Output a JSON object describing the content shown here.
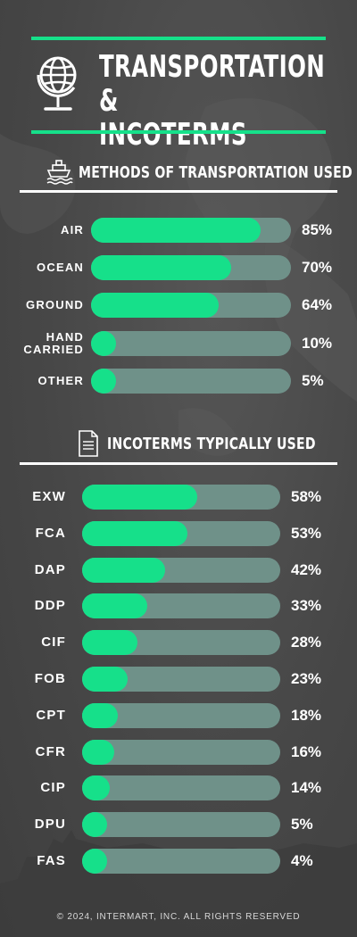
{
  "title": "TRANSPORTATION &\nINCOTERMS",
  "icons": {
    "header": "globe-icon",
    "section1": "ship-icon",
    "section2": "document-icon"
  },
  "colors": {
    "accent": "#16e08a",
    "track": "#6f9189",
    "background": "#4a4a4a"
  },
  "footer": "© 2024, INTERMART, INC. ALL RIGHTS RESERVED",
  "chart_data": [
    {
      "type": "bar",
      "orientation": "horizontal",
      "title": "METHODS OF TRANSPORTATION USED",
      "categories": [
        "AIR",
        "OCEAN",
        "GROUND",
        "HAND\nCARRIED",
        "OTHER"
      ],
      "values": [
        85,
        70,
        64,
        10,
        5
      ],
      "value_labels": [
        "85%",
        "70%",
        "64%",
        "10%",
        "5%"
      ],
      "xlim": [
        0,
        100
      ]
    },
    {
      "type": "bar",
      "orientation": "horizontal",
      "title": "INCOTERMS TYPICALLY USED",
      "categories": [
        "EXW",
        "FCA",
        "DAP",
        "DDP",
        "CIF",
        "FOB",
        "CPT",
        "CFR",
        "CIP",
        "DPU",
        "FAS"
      ],
      "values": [
        58,
        53,
        42,
        33,
        28,
        23,
        18,
        16,
        14,
        5,
        4
      ],
      "value_labels": [
        "58%",
        "53%",
        "42%",
        "33%",
        "28%",
        "23%",
        "18%",
        "16%",
        "14%",
        "5%",
        "4%"
      ],
      "xlim": [
        0,
        100
      ]
    }
  ]
}
